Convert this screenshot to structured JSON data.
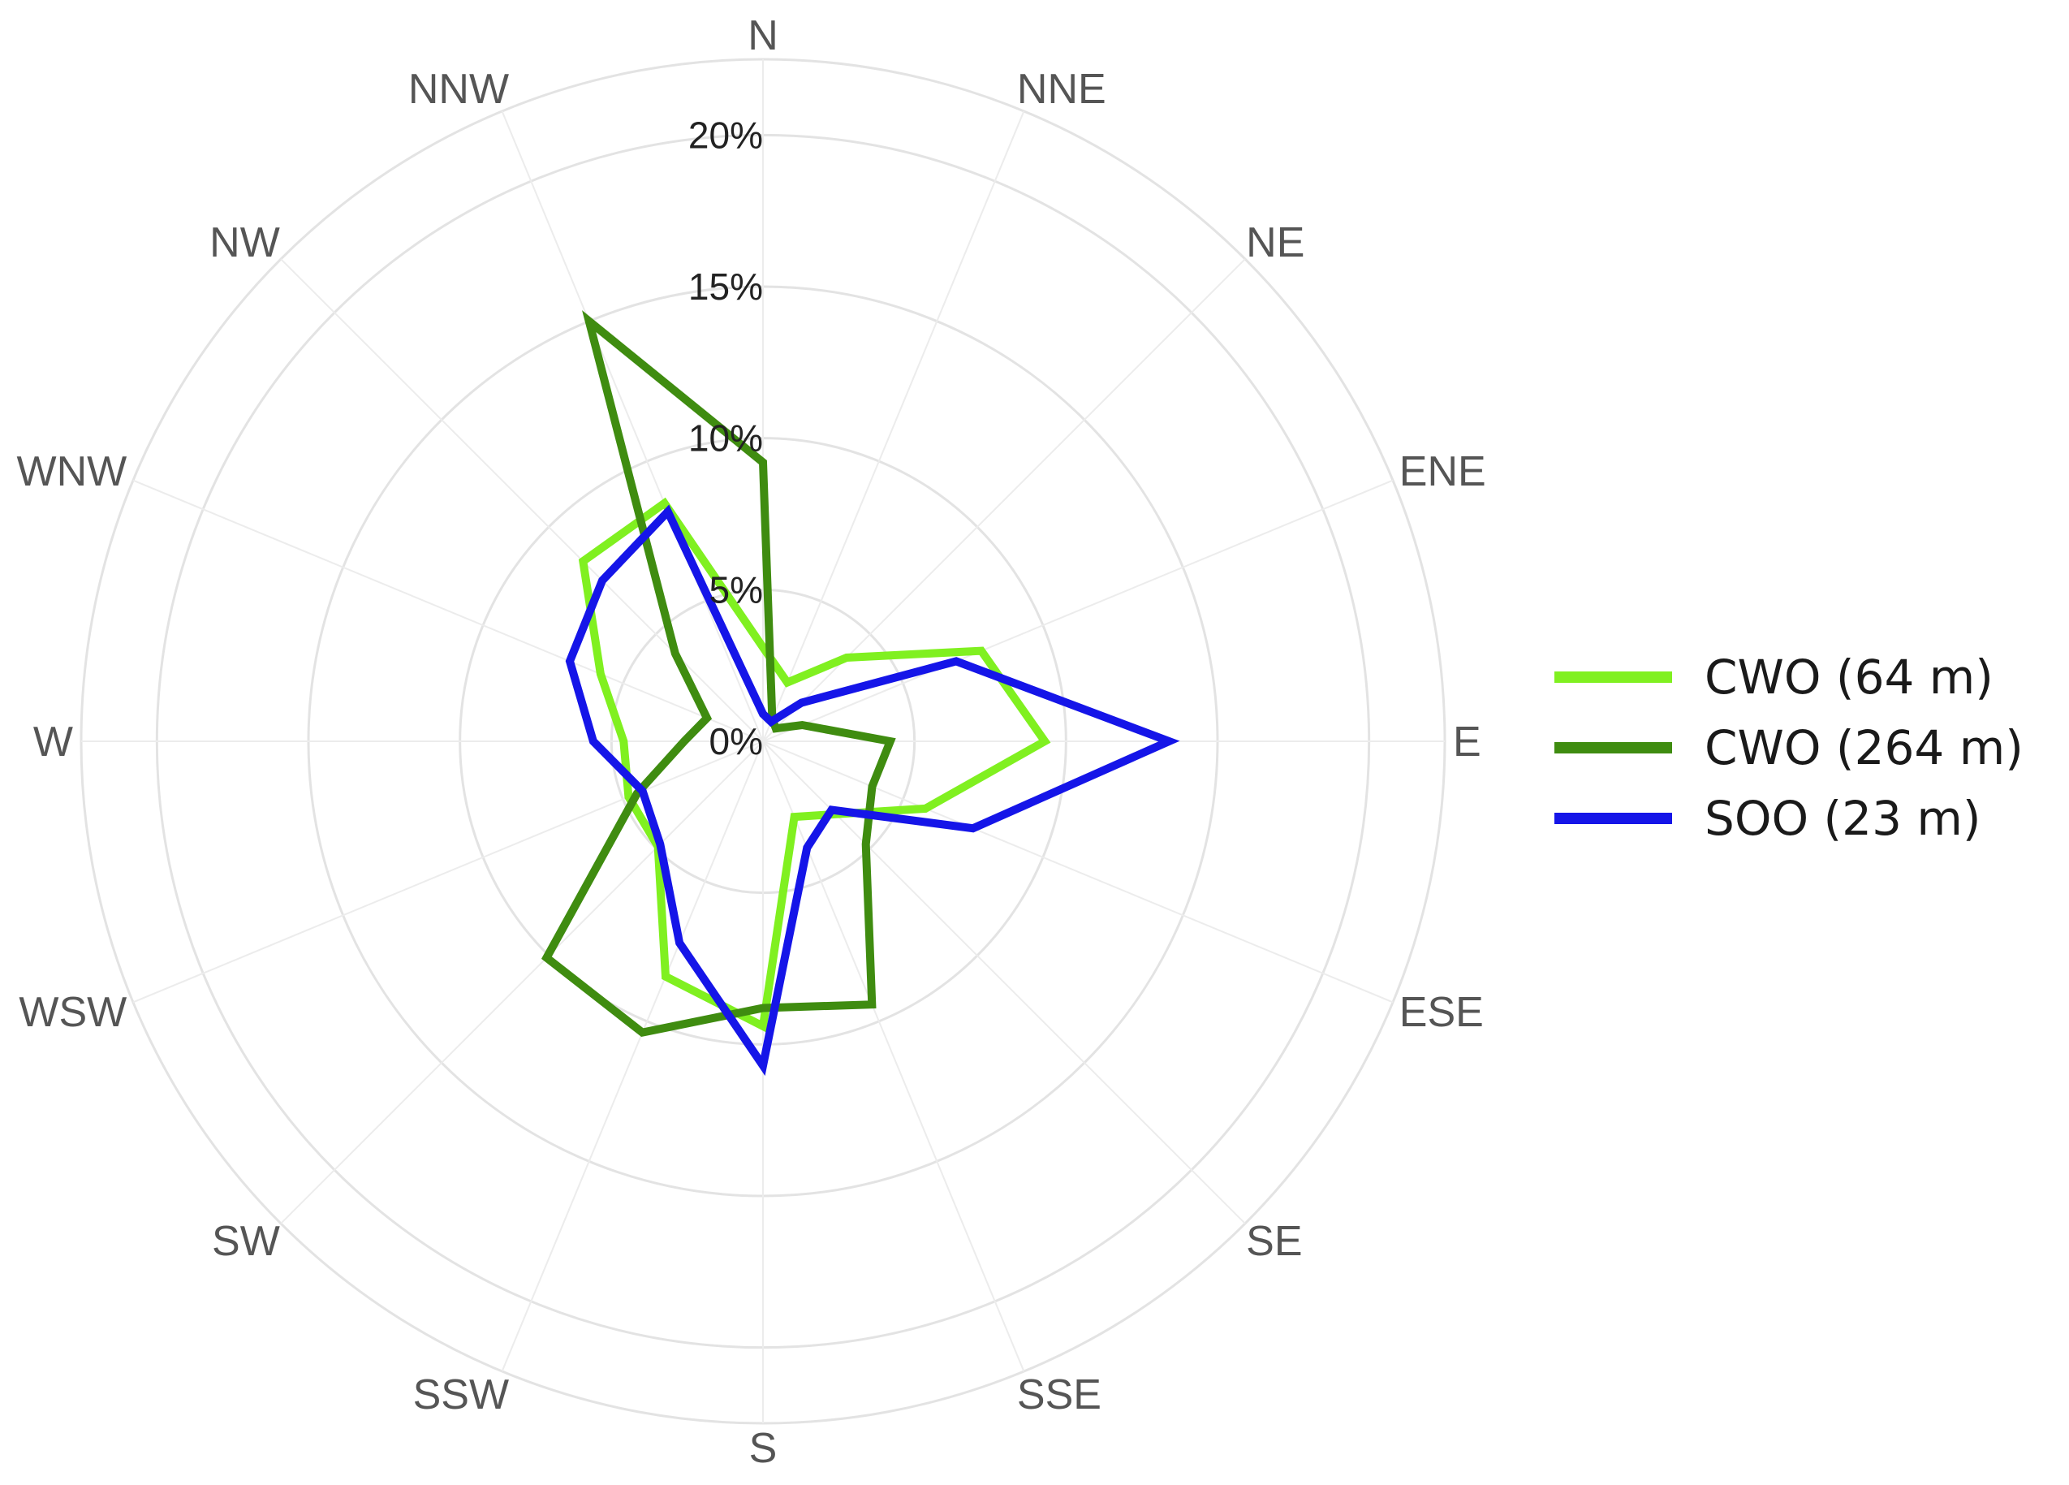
{
  "chart_data": {
    "type": "radar",
    "directions": [
      "N",
      "NNE",
      "NE",
      "ENE",
      "E",
      "ESE",
      "SE",
      "SSE",
      "S",
      "SSW",
      "SW",
      "WSW",
      "W",
      "WNW",
      "NW",
      "NNW"
    ],
    "radial_ticks": [
      {
        "value": 0,
        "label": "0%"
      },
      {
        "value": 5,
        "label": "5%"
      },
      {
        "value": 10,
        "label": "10%"
      },
      {
        "value": 15,
        "label": "15%"
      },
      {
        "value": 20,
        "label": "20%"
      }
    ],
    "rmax": 22.5,
    "grid_rings": [
      5,
      10,
      15,
      20,
      22.5
    ],
    "series": [
      {
        "name": "CWO (64 m)",
        "color": "#80f020",
        "values": [
          3.1,
          2.1,
          3.9,
          7.8,
          9.3,
          5.8,
          3.4,
          2.7,
          9.4,
          8.4,
          4.9,
          4.8,
          4.6,
          5.8,
          8.4,
          8.5
        ]
      },
      {
        "name": "CWO (264 m)",
        "color": "#3f8c10",
        "values": [
          9.2,
          0.8,
          0.6,
          1.4,
          4.2,
          3.9,
          4.8,
          9.4,
          8.8,
          10.4,
          10.1,
          4.5,
          2.6,
          2.0,
          4.1,
          15.0
        ]
      },
      {
        "name": "SOO (23 m)",
        "color": "#1515e8",
        "values": [
          0.9,
          0.7,
          1.8,
          6.9,
          13.4,
          7.5,
          3.2,
          3.8,
          10.7,
          7.2,
          4.8,
          4.3,
          5.6,
          6.9,
          7.5,
          8.2
        ]
      }
    ],
    "legend_position": "right"
  }
}
